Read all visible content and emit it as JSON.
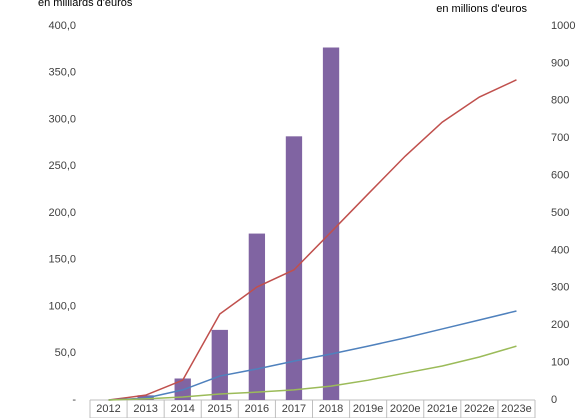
{
  "chart_data": {
    "type": "bar",
    "y_label": "en milliards d'euros",
    "y2_label": "en millions d'euros",
    "categories": [
      "2012",
      "2013",
      "2014",
      "2015",
      "2016",
      "2017",
      "2018",
      "2019e",
      "2020e",
      "2021e",
      "2022e",
      "2023e"
    ],
    "series": [
      {
        "type": "bar",
        "color": "#8064a2",
        "values": [
          null,
          5,
          23,
          75,
          178,
          282,
          377,
          null,
          null,
          null,
          null,
          null
        ]
      },
      {
        "type": "line",
        "axis": "y2",
        "color": "#c0504d",
        "values": [
          0,
          13,
          53,
          230,
          302,
          348,
          449,
          551,
          652,
          743,
          810,
          856
        ]
      },
      {
        "type": "line",
        "axis": "y2",
        "color": "#4f81bd",
        "values": [
          0,
          5,
          27,
          64,
          83,
          104,
          123,
          144,
          166,
          190,
          214,
          238
        ]
      },
      {
        "type": "line",
        "axis": "y2",
        "color": "#9bbb59",
        "values": [
          0,
          3,
          8,
          16,
          21,
          27,
          37,
          53,
          72,
          91,
          115,
          144
        ]
      }
    ],
    "ylim": [
      0,
      400
    ],
    "yticks": [
      {
        "value": 0,
        "label": "-"
      },
      {
        "value": 50,
        "label": "50,0"
      },
      {
        "value": 100,
        "label": "100,0"
      },
      {
        "value": 150,
        "label": "150,0"
      },
      {
        "value": 200,
        "label": "200,0"
      },
      {
        "value": 250,
        "label": "250,0"
      },
      {
        "value": 300,
        "label": "300,0"
      },
      {
        "value": 350,
        "label": "350,0"
      },
      {
        "value": 400,
        "label": "400,0"
      }
    ],
    "y2lim": [
      0,
      1000
    ],
    "y2ticks": [
      0,
      100,
      200,
      300,
      400,
      500,
      600,
      700,
      800,
      900,
      1000
    ]
  }
}
